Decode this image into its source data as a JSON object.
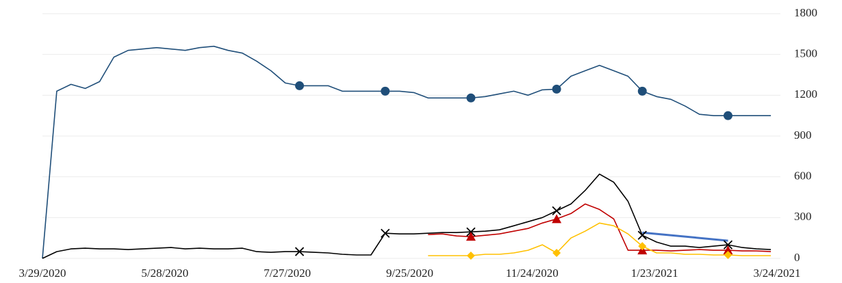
{
  "chart_data": {
    "type": "line",
    "x": [
      "3/29/2020",
      "4/5/2020",
      "4/12/2020",
      "4/19/2020",
      "4/26/2020",
      "5/3/2020",
      "5/10/2020",
      "5/17/2020",
      "5/24/2020",
      "5/31/2020",
      "6/7/2020",
      "6/14/2020",
      "6/21/2020",
      "6/28/2020",
      "7/5/2020",
      "7/12/2020",
      "7/19/2020",
      "7/26/2020",
      "8/2/2020",
      "8/9/2020",
      "8/16/2020",
      "8/23/2020",
      "8/30/2020",
      "9/6/2020",
      "9/13/2020",
      "9/20/2020",
      "9/27/2020",
      "10/4/2020",
      "10/11/2020",
      "10/18/2020",
      "10/25/2020",
      "11/1/2020",
      "11/8/2020",
      "11/15/2020",
      "11/22/2020",
      "11/29/2020",
      "12/6/2020",
      "12/13/2020",
      "12/20/2020",
      "12/27/2020",
      "1/3/2021",
      "1/10/2021",
      "1/17/2021",
      "1/24/2021",
      "1/31/2021",
      "2/7/2021",
      "2/14/2021",
      "2/21/2021",
      "2/28/2021",
      "3/7/2021",
      "3/14/2021",
      "3/21/2021"
    ],
    "series": [
      {
        "color": "#1f4e79",
        "marker": "circle",
        "values": [
          0,
          1230,
          1280,
          1250,
          1300,
          1480,
          1530,
          1540,
          1550,
          1540,
          1530,
          1550,
          1560,
          1530,
          1510,
          1450,
          1380,
          1290,
          1270,
          1270,
          1270,
          1230,
          1230,
          1230,
          1230,
          1230,
          1220,
          1180,
          1180,
          1180,
          1180,
          1190,
          1210,
          1230,
          1200,
          1240,
          1245,
          1340,
          1380,
          1420,
          1380,
          1340,
          1230,
          1190,
          1170,
          1120,
          1060,
          1050,
          1050,
          1050,
          1050,
          1050
        ]
      },
      {
        "color": "#000000",
        "marker": "x",
        "values": [
          0,
          50,
          70,
          75,
          70,
          70,
          65,
          70,
          75,
          80,
          70,
          75,
          70,
          70,
          75,
          50,
          45,
          50,
          50,
          45,
          40,
          30,
          25,
          25,
          185,
          180,
          180,
          185,
          190,
          190,
          195,
          200,
          210,
          240,
          270,
          300,
          350,
          400,
          500,
          620,
          560,
          420,
          170,
          120,
          90,
          90,
          80,
          90,
          100,
          80,
          70,
          65
        ]
      },
      {
        "color": "#c00000",
        "marker": "triangle",
        "values": [
          null,
          null,
          null,
          null,
          null,
          null,
          null,
          null,
          null,
          null,
          null,
          null,
          null,
          null,
          null,
          null,
          null,
          null,
          null,
          null,
          null,
          null,
          null,
          null,
          null,
          null,
          null,
          175,
          180,
          165,
          160,
          170,
          180,
          200,
          220,
          260,
          290,
          330,
          400,
          360,
          290,
          60,
          60,
          60,
          55,
          60,
          65,
          60,
          60,
          55,
          55,
          50
        ]
      },
      {
        "color": "#ffc000",
        "marker": "diamond",
        "values": [
          null,
          null,
          null,
          null,
          null,
          null,
          null,
          null,
          null,
          null,
          null,
          null,
          null,
          null,
          null,
          null,
          null,
          null,
          null,
          null,
          null,
          null,
          null,
          null,
          null,
          null,
          null,
          20,
          20,
          20,
          20,
          30,
          30,
          40,
          60,
          100,
          40,
          150,
          200,
          260,
          240,
          180,
          90,
          40,
          40,
          30,
          30,
          25,
          25,
          20,
          20,
          20
        ]
      },
      {
        "color": "#4472c4",
        "x": [
          "1/17/2021",
          "2/28/2021"
        ],
        "values": [
          190,
          130
        ]
      }
    ],
    "xlim": [
      "3/29/2020",
      "3/24/2021"
    ],
    "xticks": [
      "3/29/2020",
      "5/28/2020",
      "7/27/2020",
      "9/25/2020",
      "11/24/2020",
      "1/23/2021",
      "3/24/2021"
    ],
    "ylim": [
      0,
      1800
    ],
    "yticks": [
      0,
      300,
      600,
      900,
      1200,
      1500,
      1800
    ],
    "grid": true
  }
}
